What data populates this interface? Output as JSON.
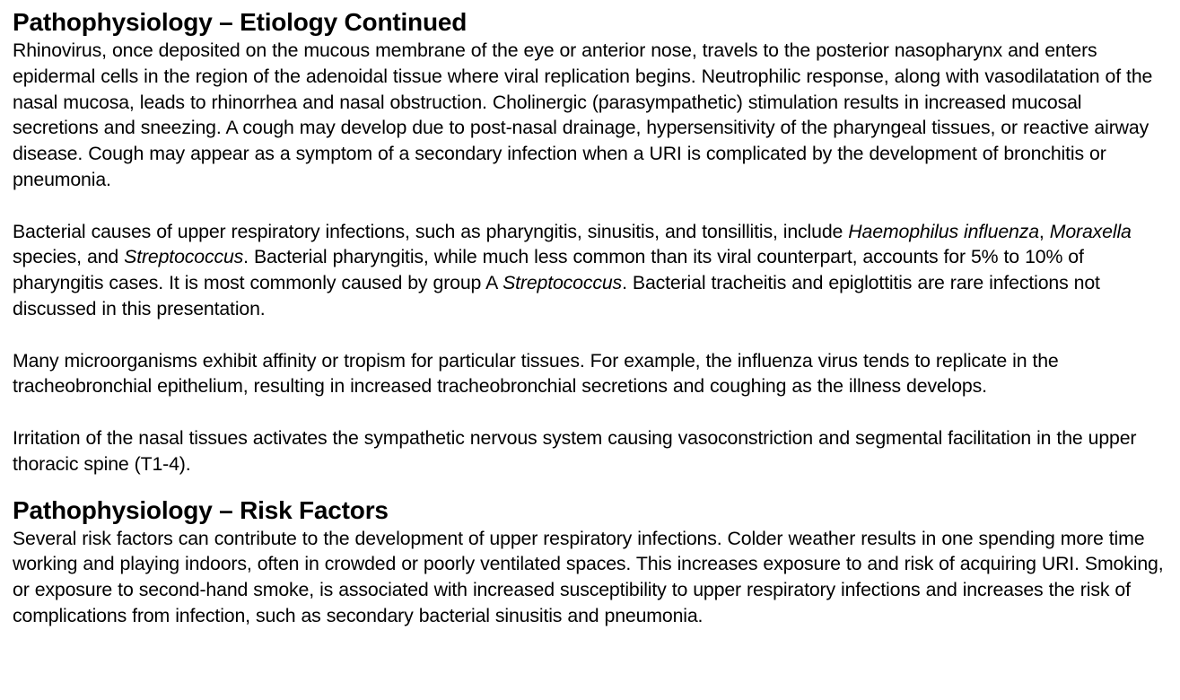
{
  "sections": [
    {
      "title": "Pathophysiology – Etiology Continued",
      "paragraphs": [
        {
          "text": "Rhinovirus, once deposited on the mucous membrane of the eye or anterior nose, travels to the posterior nasopharynx and enters epidermal cells in the region of the adenoidal tissue where viral replication begins. Neutrophilic response, along with vasodilatation of the nasal mucosa, leads to rhinorrhea and nasal obstruction. Cholinergic (parasympathetic) stimulation results in increased mucosal secretions and sneezing. A cough may develop due to post-nasal drainage, hypersensitivity of the pharyngeal tissues, or reactive airway disease. Cough may appear as a symptom of a secondary infection when a URI is complicated by the development of bronchitis or pneumonia."
        },
        {
          "parts": [
            "Bacterial causes of upper respiratory infections, such as pharyngitis, sinusitis, and tonsillitis, include ",
            "Haemophilus influenza",
            ", ",
            "Moraxella",
            " species, and ",
            "Streptococcus",
            ". Bacterial pharyngitis, while much less common than its viral counterpart, accounts for 5% to 10% of pharyngitis cases. It is most commonly caused by group A ",
            "Streptococcus",
            ". Bacterial tracheitis and epiglottitis are rare infections not discussed in this presentation."
          ]
        },
        {
          "text": "Many microorganisms exhibit affinity or tropism for particular tissues. For example, the influenza virus tends to replicate in the tracheobronchial epithelium, resulting in increased tracheobronchial secretions and coughing as the illness develops."
        },
        {
          "text": "Irritation of the nasal tissues activates the sympathetic nervous system causing vasoconstriction and segmental facilitation in the upper thoracic spine (T1-4)."
        }
      ]
    },
    {
      "title": "Pathophysiology – Risk Factors",
      "paragraphs": [
        {
          "text": "Several risk factors can contribute to the development of upper respiratory infections. Colder weather results in one spending more time working and playing indoors, often in crowded or poorly ventilated spaces. This increases exposure to and risk of acquiring URI. Smoking, or exposure to second-hand smoke, is associated with increased susceptibility to upper respiratory infections and increases the risk of complications from infection, such as secondary bacterial sinusitis and pneumonia."
        }
      ]
    }
  ]
}
